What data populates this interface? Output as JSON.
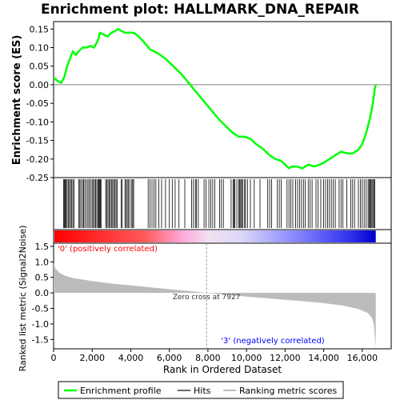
{
  "chart_data": {
    "title": "Enrichment plot: HALLMARK_DNA_REPAIR",
    "type": "line",
    "es_panel": {
      "ylabel": "Enrichment score (ES)",
      "ylim": [
        -0.25,
        0.17
      ],
      "yticks": [
        0.15,
        0.1,
        0.05,
        0.0,
        -0.05,
        -0.1,
        -0.15,
        -0.2,
        -0.25
      ],
      "ytick_labels": [
        "0.15",
        "0.10",
        "0.05",
        "0.00",
        "-0.05",
        "-0.10",
        "-0.15",
        "-0.20",
        "-0.25"
      ],
      "color": "#00ff00",
      "points": [
        [
          0,
          0.02
        ],
        [
          200,
          0.01
        ],
        [
          400,
          0.005
        ],
        [
          550,
          0.02
        ],
        [
          700,
          0.05
        ],
        [
          850,
          0.07
        ],
        [
          1000,
          0.09
        ],
        [
          1150,
          0.08
        ],
        [
          1300,
          0.09
        ],
        [
          1500,
          0.1
        ],
        [
          1700,
          0.1
        ],
        [
          1900,
          0.105
        ],
        [
          2100,
          0.1
        ],
        [
          2300,
          0.12
        ],
        [
          2400,
          0.14
        ],
        [
          2600,
          0.135
        ],
        [
          2800,
          0.13
        ],
        [
          3000,
          0.14
        ],
        [
          3200,
          0.145
        ],
        [
          3350,
          0.15
        ],
        [
          3500,
          0.145
        ],
        [
          3700,
          0.14
        ],
        [
          3900,
          0.14
        ],
        [
          4100,
          0.14
        ],
        [
          4300,
          0.135
        ],
        [
          4600,
          0.12
        ],
        [
          5000,
          0.095
        ],
        [
          5400,
          0.085
        ],
        [
          5800,
          0.07
        ],
        [
          6200,
          0.05
        ],
        [
          6600,
          0.03
        ],
        [
          7000,
          0.005
        ],
        [
          7400,
          -0.02
        ],
        [
          7800,
          -0.045
        ],
        [
          8200,
          -0.07
        ],
        [
          8600,
          -0.095
        ],
        [
          9000,
          -0.115
        ],
        [
          9300,
          -0.13
        ],
        [
          9600,
          -0.14
        ],
        [
          9900,
          -0.14
        ],
        [
          10200,
          -0.145
        ],
        [
          10500,
          -0.16
        ],
        [
          10800,
          -0.17
        ],
        [
          11200,
          -0.19
        ],
        [
          11500,
          -0.2
        ],
        [
          11800,
          -0.205
        ],
        [
          12000,
          -0.215
        ],
        [
          12200,
          -0.225
        ],
        [
          12350,
          -0.22
        ],
        [
          12600,
          -0.22
        ],
        [
          12900,
          -0.225
        ],
        [
          13200,
          -0.215
        ],
        [
          13500,
          -0.22
        ],
        [
          13800,
          -0.215
        ],
        [
          14000,
          -0.21
        ],
        [
          14300,
          -0.2
        ],
        [
          14600,
          -0.19
        ],
        [
          14900,
          -0.18
        ],
        [
          15200,
          -0.185
        ],
        [
          15500,
          -0.185
        ],
        [
          15800,
          -0.175
        ],
        [
          16000,
          -0.16
        ],
        [
          16200,
          -0.13
        ],
        [
          16400,
          -0.09
        ],
        [
          16550,
          -0.05
        ],
        [
          16650,
          -0.01
        ],
        [
          16700,
          0.0
        ]
      ]
    },
    "hits": [
      520,
      560,
      600,
      640,
      700,
      760,
      820,
      880,
      940,
      1000,
      1060,
      1300,
      1360,
      1420,
      1500,
      1560,
      1620,
      1700,
      1780,
      1850,
      1920,
      2000,
      2060,
      2120,
      2180,
      2240,
      2300,
      2340,
      2380,
      2420,
      2460,
      2700,
      2760,
      2820,
      2880,
      2940,
      3000,
      3060,
      3120,
      3180,
      3240,
      3300,
      3500,
      3560,
      3700,
      3760,
      3820,
      3880,
      3950,
      4050,
      4100,
      4150,
      4900,
      5000,
      5100,
      5200,
      5300,
      5450,
      5600,
      5800,
      6000,
      6150,
      6300,
      6500,
      6800,
      7150,
      7250,
      7350,
      7400,
      7500,
      7800,
      7900,
      8050,
      8150,
      8250,
      8350,
      8600,
      8700,
      8800,
      9200,
      9300,
      9350,
      9400,
      9500,
      9600,
      9650,
      9700,
      9750,
      9800,
      9900,
      9950,
      10050,
      10200,
      10400,
      10700,
      11100,
      11200,
      11300,
      11600,
      11700,
      11800,
      12100,
      12200,
      12300,
      12400,
      12550,
      12650,
      12750,
      12850,
      12950,
      13050,
      13200,
      13300,
      13400,
      13600,
      13700,
      13850,
      14000,
      14100,
      14200,
      14300,
      14400,
      14500,
      14600,
      14800,
      14900,
      15000,
      15200,
      15400,
      15500,
      15600,
      15800,
      15900,
      16000,
      16100,
      16200,
      16300,
      16350,
      16400,
      16450,
      16500,
      16550,
      16600,
      16650
    ],
    "metric_panel": {
      "ylabel": "Ranked list metric (Signal2Noise)",
      "ylim": [
        -1.8,
        1.6
      ],
      "yticks": [
        1.5,
        1.0,
        0.5,
        0.0,
        -0.5,
        -1.0,
        -1.5
      ],
      "ytick_labels": [
        "1.5",
        "1.0",
        "0.5",
        "0.0",
        "-0.5",
        "-1.0",
        "-1.5"
      ],
      "profile": [
        [
          0,
          0.95
        ],
        [
          100,
          0.78
        ],
        [
          300,
          0.65
        ],
        [
          600,
          0.55
        ],
        [
          1000,
          0.48
        ],
        [
          2000,
          0.38
        ],
        [
          3000,
          0.3
        ],
        [
          4000,
          0.24
        ],
        [
          5000,
          0.18
        ],
        [
          6000,
          0.12
        ],
        [
          7000,
          0.06
        ],
        [
          7927,
          0.0
        ],
        [
          9000,
          -0.07
        ],
        [
          10000,
          -0.12
        ],
        [
          11000,
          -0.17
        ],
        [
          12000,
          -0.22
        ],
        [
          13000,
          -0.27
        ],
        [
          14000,
          -0.33
        ],
        [
          15000,
          -0.41
        ],
        [
          15800,
          -0.52
        ],
        [
          16300,
          -0.65
        ],
        [
          16500,
          -0.8
        ],
        [
          16600,
          -1.0
        ],
        [
          16650,
          -1.4
        ],
        [
          16700,
          -1.75
        ]
      ],
      "fill_color": "#bbbbbb",
      "zero_cross_label": "Zero cross at 7927",
      "zero_cross": 7927,
      "pos_label": "'0' (positively correlated)",
      "neg_label": "'3' (negatively correlated)",
      "pos_color": "#ff0000",
      "neg_color": "#0000ff"
    },
    "xlabel": "Rank in Ordered Dataset",
    "xlim": [
      0,
      17500
    ],
    "xticks": [
      0,
      2000,
      4000,
      6000,
      8000,
      10000,
      12000,
      14000,
      16000
    ],
    "xtick_labels": [
      "0",
      "2,000",
      "4,000",
      "6,000",
      "8,000",
      "10,000",
      "12,000",
      "14,000",
      "16,000"
    ],
    "n_genes": 16700,
    "legend": [
      {
        "label": "Enrichment profile",
        "color": "#00ff00"
      },
      {
        "label": "Hits",
        "color": "#000000"
      },
      {
        "label": "Ranking metric scores",
        "color": "#bbbbbb"
      }
    ]
  }
}
